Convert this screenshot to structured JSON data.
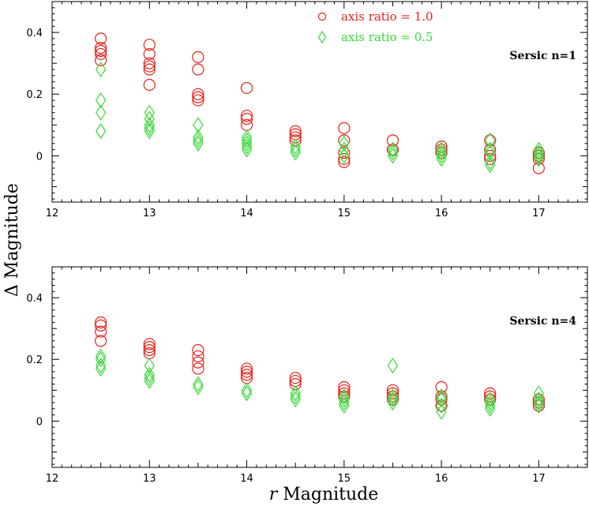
{
  "chart_data": [
    {
      "type": "scatter",
      "panel_label": "Sersic n=1",
      "xlim": [
        12,
        17.5
      ],
      "ylim": [
        -0.15,
        0.5
      ],
      "xticks": [
        12,
        13,
        14,
        15,
        16,
        17
      ],
      "yticks": [
        0,
        0.2,
        0.4
      ],
      "series": [
        {
          "name": "axis ratio = 1.0",
          "marker": "circle",
          "color": "#e8221b",
          "points": [
            [
              12.5,
              0.38
            ],
            [
              12.5,
              0.35
            ],
            [
              12.5,
              0.34
            ],
            [
              12.5,
              0.33
            ],
            [
              12.5,
              0.31
            ],
            [
              13.0,
              0.36
            ],
            [
              13.0,
              0.33
            ],
            [
              13.0,
              0.3
            ],
            [
              13.0,
              0.29
            ],
            [
              13.0,
              0.28
            ],
            [
              13.0,
              0.23
            ],
            [
              13.5,
              0.32
            ],
            [
              13.5,
              0.28
            ],
            [
              13.5,
              0.2
            ],
            [
              13.5,
              0.19
            ],
            [
              13.5,
              0.18
            ],
            [
              14.0,
              0.22
            ],
            [
              14.0,
              0.13
            ],
            [
              14.0,
              0.12
            ],
            [
              14.0,
              0.1
            ],
            [
              14.5,
              0.08
            ],
            [
              14.5,
              0.07
            ],
            [
              14.5,
              0.06
            ],
            [
              14.5,
              0.05
            ],
            [
              15.0,
              0.09
            ],
            [
              15.0,
              0.05
            ],
            [
              15.0,
              0.01
            ],
            [
              15.0,
              -0.01
            ],
            [
              15.0,
              -0.02
            ],
            [
              15.5,
              0.05
            ],
            [
              15.5,
              0.02
            ],
            [
              15.5,
              0.02
            ],
            [
              16.0,
              0.03
            ],
            [
              16.0,
              0.02
            ],
            [
              16.0,
              0.01
            ],
            [
              16.5,
              0.05
            ],
            [
              16.5,
              0.02
            ],
            [
              16.5,
              0.0
            ],
            [
              16.5,
              -0.01
            ],
            [
              17.0,
              0.01
            ],
            [
              17.0,
              0.0
            ],
            [
              17.0,
              -0.01
            ],
            [
              17.0,
              -0.04
            ]
          ]
        },
        {
          "name": "axis ratio = 0.5",
          "marker": "diamond",
          "color": "#3ad83a",
          "points": [
            [
              12.5,
              0.28
            ],
            [
              12.5,
              0.18
            ],
            [
              12.5,
              0.14
            ],
            [
              12.5,
              0.08
            ],
            [
              13.0,
              0.14
            ],
            [
              13.0,
              0.12
            ],
            [
              13.0,
              0.1
            ],
            [
              13.0,
              0.09
            ],
            [
              13.0,
              0.08
            ],
            [
              13.5,
              0.1
            ],
            [
              13.5,
              0.06
            ],
            [
              13.5,
              0.05
            ],
            [
              13.5,
              0.04
            ],
            [
              14.0,
              0.06
            ],
            [
              14.0,
              0.05
            ],
            [
              14.0,
              0.04
            ],
            [
              14.0,
              0.03
            ],
            [
              14.0,
              0.02
            ],
            [
              14.5,
              0.03
            ],
            [
              14.5,
              0.02
            ],
            [
              14.5,
              0.01
            ],
            [
              15.0,
              0.04
            ],
            [
              15.0,
              0.02
            ],
            [
              15.0,
              0.0
            ],
            [
              15.5,
              0.02
            ],
            [
              15.5,
              0.01
            ],
            [
              15.5,
              0.0
            ],
            [
              16.0,
              0.02
            ],
            [
              16.0,
              0.01
            ],
            [
              16.0,
              0.0
            ],
            [
              16.0,
              -0.01
            ],
            [
              16.5,
              0.05
            ],
            [
              16.5,
              0.02
            ],
            [
              16.5,
              0.01
            ],
            [
              16.5,
              -0.02
            ],
            [
              16.5,
              -0.03
            ],
            [
              17.0,
              0.02
            ],
            [
              17.0,
              0.01
            ],
            [
              17.0,
              0.0
            ],
            [
              17.0,
              -0.01
            ]
          ]
        }
      ]
    },
    {
      "type": "scatter",
      "panel_label": "Sersic n=4",
      "xlim": [
        12,
        17.5
      ],
      "ylim": [
        -0.15,
        0.5
      ],
      "xticks": [
        12,
        13,
        14,
        15,
        16,
        17
      ],
      "yticks": [
        0,
        0.2,
        0.4
      ],
      "series": [
        {
          "name": "axis ratio = 1.0",
          "marker": "circle",
          "color": "#e8221b",
          "points": [
            [
              12.5,
              0.32
            ],
            [
              12.5,
              0.31
            ],
            [
              12.5,
              0.29
            ],
            [
              12.5,
              0.26
            ],
            [
              13.0,
              0.25
            ],
            [
              13.0,
              0.24
            ],
            [
              13.0,
              0.23
            ],
            [
              13.0,
              0.22
            ],
            [
              13.5,
              0.23
            ],
            [
              13.5,
              0.21
            ],
            [
              13.5,
              0.19
            ],
            [
              13.5,
              0.17
            ],
            [
              14.0,
              0.17
            ],
            [
              14.0,
              0.16
            ],
            [
              14.0,
              0.15
            ],
            [
              14.0,
              0.14
            ],
            [
              14.5,
              0.14
            ],
            [
              14.5,
              0.13
            ],
            [
              14.5,
              0.12
            ],
            [
              15.0,
              0.11
            ],
            [
              15.0,
              0.1
            ],
            [
              15.0,
              0.09
            ],
            [
              15.0,
              0.08
            ],
            [
              15.5,
              0.1
            ],
            [
              15.5,
              0.09
            ],
            [
              15.5,
              0.08
            ],
            [
              15.5,
              0.07
            ],
            [
              16.0,
              0.11
            ],
            [
              16.0,
              0.08
            ],
            [
              16.0,
              0.07
            ],
            [
              16.0,
              0.05
            ],
            [
              16.5,
              0.09
            ],
            [
              16.5,
              0.08
            ],
            [
              16.5,
              0.07
            ],
            [
              17.0,
              0.07
            ],
            [
              17.0,
              0.06
            ],
            [
              17.0,
              0.05
            ]
          ]
        },
        {
          "name": "axis ratio = 0.5",
          "marker": "diamond",
          "color": "#3ad83a",
          "points": [
            [
              12.5,
              0.21
            ],
            [
              12.5,
              0.2
            ],
            [
              12.5,
              0.18
            ],
            [
              12.5,
              0.17
            ],
            [
              13.0,
              0.18
            ],
            [
              13.0,
              0.15
            ],
            [
              13.0,
              0.14
            ],
            [
              13.0,
              0.13
            ],
            [
              13.5,
              0.12
            ],
            [
              13.5,
              0.11
            ],
            [
              14.0,
              0.1
            ],
            [
              14.0,
              0.09
            ],
            [
              14.0,
              0.09
            ],
            [
              14.5,
              0.09
            ],
            [
              14.5,
              0.08
            ],
            [
              14.5,
              0.07
            ],
            [
              15.0,
              0.08
            ],
            [
              15.0,
              0.07
            ],
            [
              15.0,
              0.06
            ],
            [
              15.0,
              0.05
            ],
            [
              15.5,
              0.18
            ],
            [
              15.5,
              0.08
            ],
            [
              15.5,
              0.07
            ],
            [
              15.5,
              0.06
            ],
            [
              16.0,
              0.08
            ],
            [
              16.0,
              0.07
            ],
            [
              16.0,
              0.05
            ],
            [
              16.0,
              0.03
            ],
            [
              16.5,
              0.07
            ],
            [
              16.5,
              0.06
            ],
            [
              16.5,
              0.05
            ],
            [
              16.5,
              0.04
            ],
            [
              17.0,
              0.09
            ],
            [
              17.0,
              0.07
            ],
            [
              17.0,
              0.06
            ],
            [
              17.0,
              0.05
            ]
          ]
        }
      ]
    }
  ],
  "axes": {
    "xlabel_italic": "r",
    "xlabel_rest": " Magnitude",
    "ylabel": "Δ Magnitude"
  },
  "legend": {
    "placement": "top-center",
    "items": [
      {
        "label": "axis ratio = 1.0",
        "marker": "circle",
        "color": "#e8221b"
      },
      {
        "label": "axis ratio = 0.5",
        "marker": "diamond",
        "color": "#3ad83a"
      }
    ]
  },
  "colors": {
    "axis": "#000000",
    "circle": "#e8221b",
    "diamond": "#3ad83a"
  }
}
